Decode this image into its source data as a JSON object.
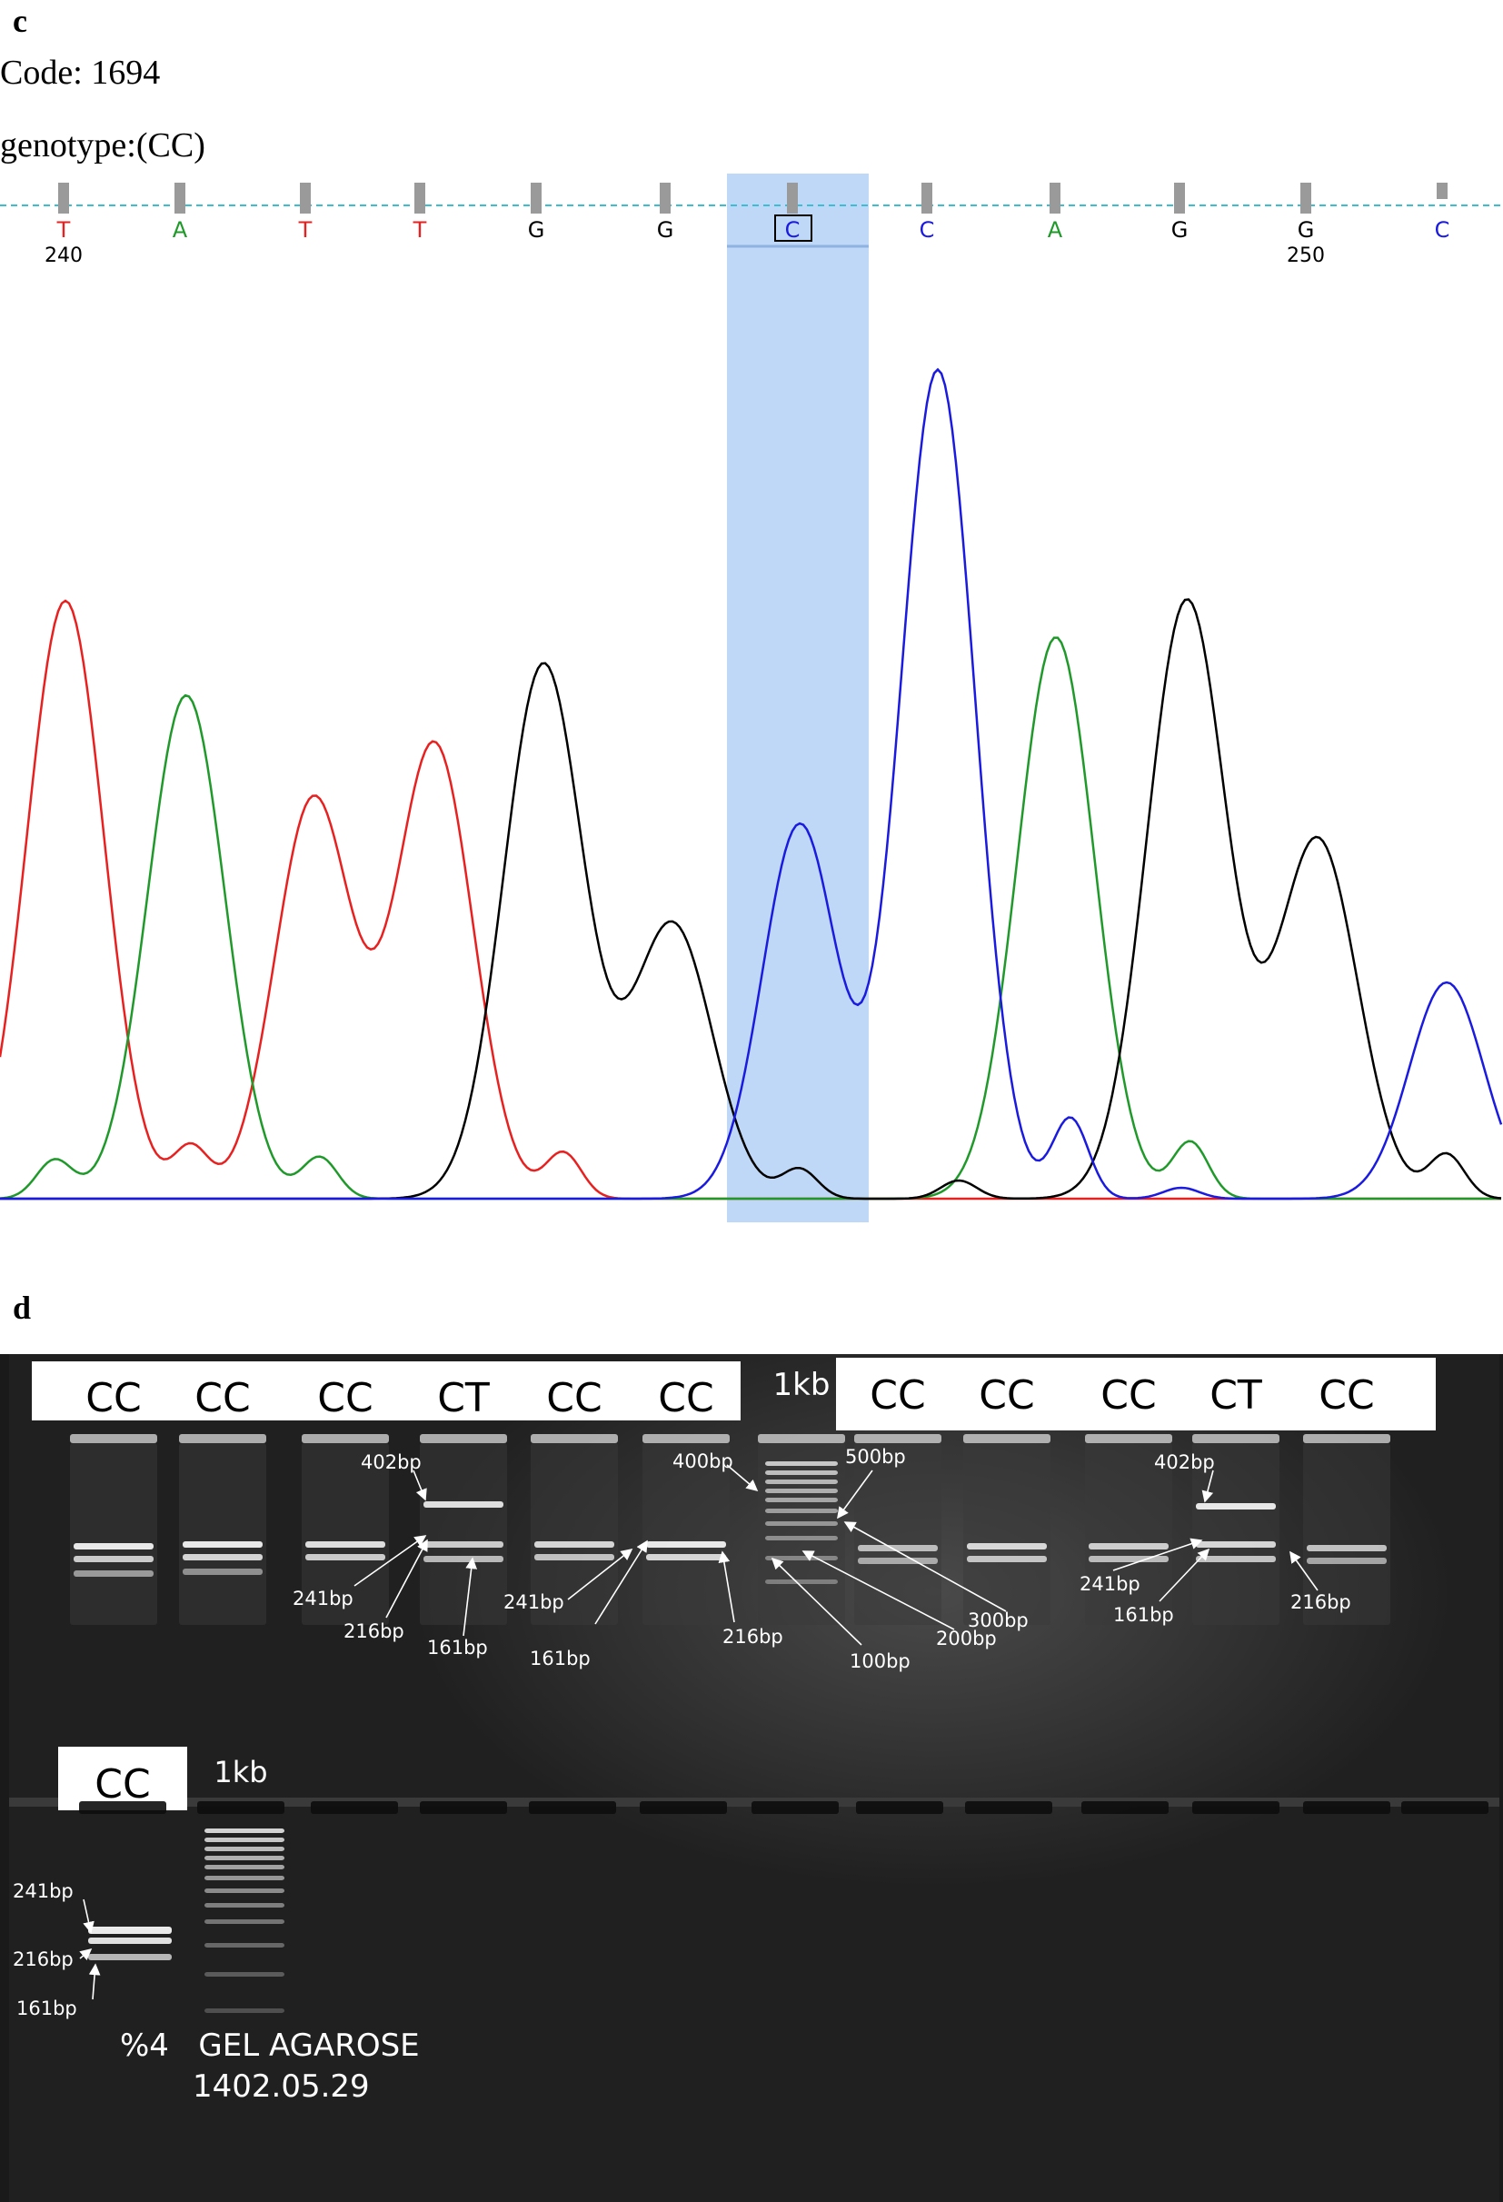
{
  "panel_c": {
    "letter": "c",
    "code_line": "Code: 1694",
    "genotype_line": "genotype:(CC)",
    "bases": [
      {
        "letter": "T",
        "color": "#e8201f"
      },
      {
        "letter": "A",
        "color": "#1f9a2a"
      },
      {
        "letter": "T",
        "color": "#e8201f"
      },
      {
        "letter": "T",
        "color": "#e8201f"
      },
      {
        "letter": "G",
        "color": "#000000"
      },
      {
        "letter": "G",
        "color": "#000000"
      },
      {
        "letter": "C",
        "color": "#1a1ae0"
      },
      {
        "letter": "C",
        "color": "#1a1ae0"
      },
      {
        "letter": "A",
        "color": "#1f9a2a"
      },
      {
        "letter": "G",
        "color": "#000000"
      },
      {
        "letter": "G",
        "color": "#000000"
      },
      {
        "letter": "C",
        "color": "#1a1ae0"
      }
    ],
    "position_labels": [
      "240",
      "250"
    ],
    "highlight_color": "#bfd8f7",
    "trace_colors": {
      "T": "#e8201f",
      "A": "#1f9a2a",
      "G": "#000000",
      "C": "#1a1ae0"
    }
  },
  "panel_d": {
    "letter": "d",
    "top_row_genotypes_left": [
      "CC",
      "CC",
      "CC",
      "CT",
      "CC",
      "CC"
    ],
    "ladder_label_top": "1kb",
    "top_row_genotypes_right": [
      "CC",
      "CC",
      "CC",
      "CT",
      "CC"
    ],
    "top_annotations": [
      "402bp",
      "241bp",
      "216bp",
      "161bp",
      "241bp",
      "161bp",
      "400bp",
      "500bp",
      "216bp",
      "100bp",
      "200bp",
      "300bp",
      "402bp",
      "241bp",
      "161bp",
      "216bp"
    ],
    "bottom_genotype": "CC",
    "ladder_label_bottom": "1kb",
    "bottom_annotations": [
      "241bp",
      "216bp",
      "161bp"
    ],
    "gel_caption_line1": "%4   GEL AGAROSE",
    "gel_caption_line2": "1402.05.29"
  }
}
